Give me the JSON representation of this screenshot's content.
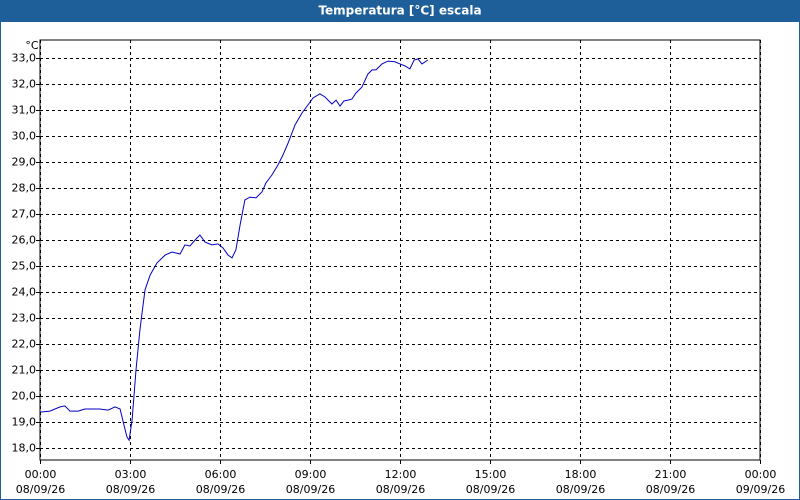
{
  "chart_data": {
    "type": "line",
    "title": "Temperatura [°C] escala",
    "y_unit": "°C",
    "xlim": [
      0,
      24
    ],
    "ylim": [
      17.54,
      33.69
    ],
    "xticks": [
      {
        "value": 0,
        "label": "00:00",
        "date": "08/09/26"
      },
      {
        "value": 3,
        "label": "03:00",
        "date": "08/09/26"
      },
      {
        "value": 6,
        "label": "06:00",
        "date": "08/09/26"
      },
      {
        "value": 9,
        "label": "09:00",
        "date": "08/09/26"
      },
      {
        "value": 12,
        "label": "12:00",
        "date": "08/09/26"
      },
      {
        "value": 15,
        "label": "15:00",
        "date": "08/09/26"
      },
      {
        "value": 18,
        "label": "18:00",
        "date": "08/09/26"
      },
      {
        "value": 21,
        "label": "21:00",
        "date": "08/09/26"
      },
      {
        "value": 24,
        "label": "00:00",
        "date": "09/09/26"
      }
    ],
    "yticks": [
      {
        "value": 18,
        "label": "18,0"
      },
      {
        "value": 19,
        "label": "19,0"
      },
      {
        "value": 20,
        "label": "20,0"
      },
      {
        "value": 21,
        "label": "21,0"
      },
      {
        "value": 22,
        "label": "22,0"
      },
      {
        "value": 23,
        "label": "23,0"
      },
      {
        "value": 24,
        "label": "24,0"
      },
      {
        "value": 25,
        "label": "25,0"
      },
      {
        "value": 26,
        "label": "26,0"
      },
      {
        "value": 27,
        "label": "27,0"
      },
      {
        "value": 28,
        "label": "28,0"
      },
      {
        "value": 29,
        "label": "29,0"
      },
      {
        "value": 30,
        "label": "30,0"
      },
      {
        "value": 31,
        "label": "31,0"
      },
      {
        "value": 32,
        "label": "32,0"
      },
      {
        "value": 33,
        "label": "33,0"
      }
    ],
    "grid": true,
    "series": [
      {
        "color": "#0000c0",
        "x": [
          0,
          0.33,
          0.67,
          0.83,
          1,
          1.27,
          1.5,
          2,
          2.27,
          2.5,
          2.67,
          2.8,
          2.9,
          2.97,
          3.07,
          3.2,
          3.33,
          3.5,
          3.67,
          3.9,
          4.17,
          4.4,
          4.67,
          4.83,
          5,
          5.17,
          5.33,
          5.5,
          5.73,
          5.93,
          6.1,
          6.27,
          6.4,
          6.53,
          6.67,
          6.83,
          7,
          7.2,
          7.4,
          7.53,
          7.73,
          7.93,
          8.1,
          8.27,
          8.5,
          8.73,
          8.93,
          9.1,
          9.33,
          9.5,
          9.73,
          9.87,
          10,
          10.13,
          10.27,
          10.4,
          10.53,
          10.73,
          10.93,
          11.07,
          11.2,
          11.4,
          11.6,
          11.83,
          12,
          12.17,
          12.33,
          12.47,
          12.6,
          12.73,
          12.93
        ],
        "values": [
          19.38,
          19.42,
          19.58,
          19.62,
          19.42,
          19.42,
          19.5,
          19.5,
          19.46,
          19.58,
          19.5,
          18.88,
          18.42,
          18.3,
          19.08,
          21.0,
          22.54,
          24.08,
          24.65,
          25.12,
          25.42,
          25.54,
          25.46,
          25.81,
          25.77,
          26.0,
          26.19,
          25.92,
          25.81,
          25.85,
          25.69,
          25.42,
          25.31,
          25.62,
          26.58,
          27.54,
          27.65,
          27.62,
          27.85,
          28.19,
          28.5,
          28.88,
          29.27,
          29.73,
          30.42,
          30.88,
          31.19,
          31.46,
          31.62,
          31.5,
          31.23,
          31.38,
          31.15,
          31.35,
          31.38,
          31.42,
          31.65,
          31.88,
          32.38,
          32.54,
          32.54,
          32.77,
          32.88,
          32.85,
          32.77,
          32.69,
          32.58,
          32.92,
          32.96,
          32.77,
          32.92
        ]
      }
    ]
  }
}
